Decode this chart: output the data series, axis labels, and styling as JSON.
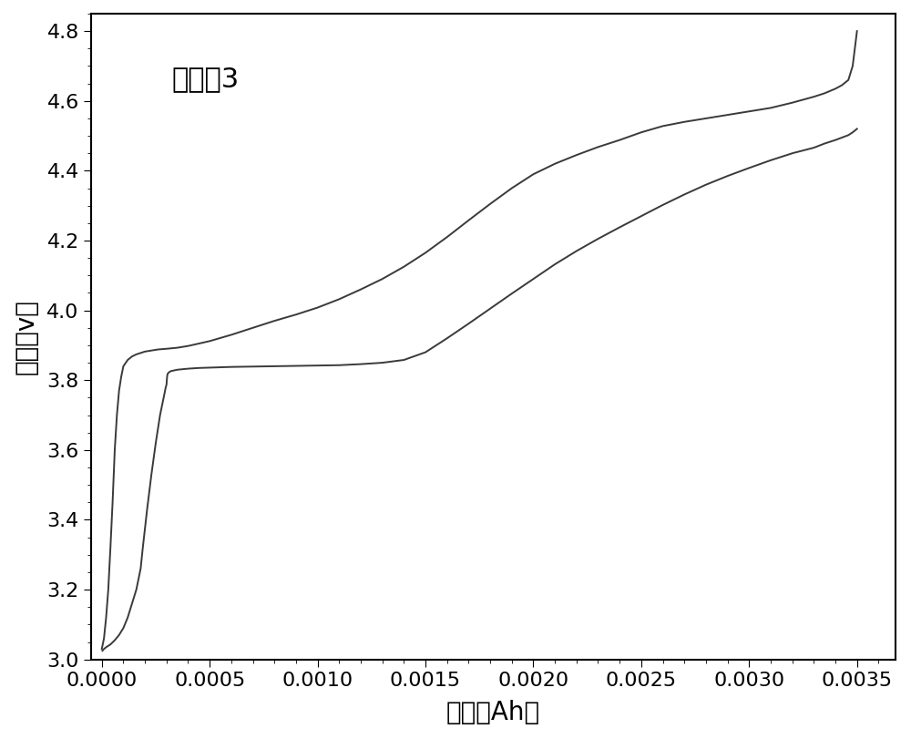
{
  "title": "对比兙3",
  "xlabel": "容量（Ah）",
  "ylabel": "电压（v）",
  "xlim": [
    -5e-05,
    0.00368
  ],
  "ylim": [
    3.0,
    4.85
  ],
  "xticks": [
    0.0,
    0.0005,
    0.001,
    0.0015,
    0.002,
    0.0025,
    0.003,
    0.0035
  ],
  "yticks": [
    3.0,
    3.2,
    3.4,
    3.6,
    3.8,
    4.0,
    4.2,
    4.4,
    4.6,
    4.8
  ],
  "line_color": "#3a3a3a",
  "line_width": 1.4,
  "background_color": "#ffffff",
  "title_fontsize": 22,
  "label_fontsize": 20,
  "tick_fontsize": 16,
  "charge_x": [
    0.0,
    1e-05,
    2e-05,
    3e-05,
    4e-05,
    5e-05,
    6e-05,
    7e-05,
    8e-05,
    9e-05,
    0.0001,
    0.00012,
    0.00014,
    0.00016,
    0.00018,
    0.0002,
    0.00022,
    0.00024,
    0.00026,
    0.00028,
    0.0003,
    0.00035,
    0.0004,
    0.00045,
    0.0005,
    0.0006,
    0.0007,
    0.0008,
    0.0009,
    0.001,
    0.0011,
    0.0012,
    0.0013,
    0.0014,
    0.0015,
    0.0016,
    0.0017,
    0.0018,
    0.0019,
    0.002,
    0.0021,
    0.0022,
    0.0023,
    0.0024,
    0.0025,
    0.0026,
    0.0027,
    0.0028,
    0.0029,
    0.003,
    0.0031,
    0.0032,
    0.0033,
    0.00335,
    0.0034,
    0.00343,
    0.00346,
    0.00348,
    0.00349,
    0.0035
  ],
  "charge_y": [
    3.03,
    3.06,
    3.12,
    3.2,
    3.32,
    3.45,
    3.6,
    3.7,
    3.77,
    3.81,
    3.84,
    3.858,
    3.868,
    3.874,
    3.878,
    3.882,
    3.884,
    3.886,
    3.888,
    3.889,
    3.89,
    3.893,
    3.898,
    3.905,
    3.912,
    3.93,
    3.95,
    3.97,
    3.988,
    4.008,
    4.032,
    4.06,
    4.09,
    4.125,
    4.165,
    4.21,
    4.258,
    4.305,
    4.35,
    4.39,
    4.42,
    4.445,
    4.468,
    4.488,
    4.51,
    4.528,
    4.54,
    4.55,
    4.56,
    4.57,
    4.58,
    4.595,
    4.612,
    4.622,
    4.635,
    4.645,
    4.66,
    4.7,
    4.75,
    4.8
  ],
  "discharge_x": [
    0.0035,
    0.00349,
    0.00348,
    0.00346,
    0.00343,
    0.0034,
    0.00335,
    0.0033,
    0.0032,
    0.0031,
    0.003,
    0.0029,
    0.0028,
    0.0027,
    0.0026,
    0.0025,
    0.0024,
    0.0023,
    0.0022,
    0.0021,
    0.002,
    0.0019,
    0.0018,
    0.0017,
    0.0016,
    0.0015,
    0.0014,
    0.0013,
    0.0012,
    0.0011,
    0.001,
    0.0009,
    0.0008,
    0.0007,
    0.0006,
    0.0005,
    0.00045,
    0.0004,
    0.00035,
    0.00032,
    0.00031,
    0.000305,
    0.000303,
    0.000302,
    0.000301,
    0.0003,
    0.000295,
    0.00029,
    0.00028,
    0.00027,
    0.00026,
    0.00025,
    0.00024,
    0.00023,
    0.00022,
    0.00021,
    0.0002,
    0.00019,
    0.00018,
    0.00016,
    0.00014,
    0.00012,
    0.0001,
    8e-05,
    6e-05,
    4e-05,
    2e-05,
    1e-05,
    3e-06
  ],
  "discharge_y": [
    4.52,
    4.515,
    4.51,
    4.502,
    4.495,
    4.488,
    4.478,
    4.466,
    4.45,
    4.43,
    4.408,
    4.385,
    4.36,
    4.332,
    4.302,
    4.27,
    4.238,
    4.205,
    4.17,
    4.132,
    4.09,
    4.048,
    4.005,
    3.962,
    3.92,
    3.88,
    3.858,
    3.85,
    3.846,
    3.843,
    3.842,
    3.841,
    3.84,
    3.839,
    3.838,
    3.836,
    3.835,
    3.833,
    3.83,
    3.826,
    3.822,
    3.818,
    3.812,
    3.805,
    3.797,
    3.788,
    3.776,
    3.76,
    3.73,
    3.7,
    3.66,
    3.62,
    3.575,
    3.53,
    3.48,
    3.43,
    3.375,
    3.32,
    3.26,
    3.2,
    3.16,
    3.12,
    3.09,
    3.07,
    3.055,
    3.043,
    3.035,
    3.03,
    3.025
  ]
}
